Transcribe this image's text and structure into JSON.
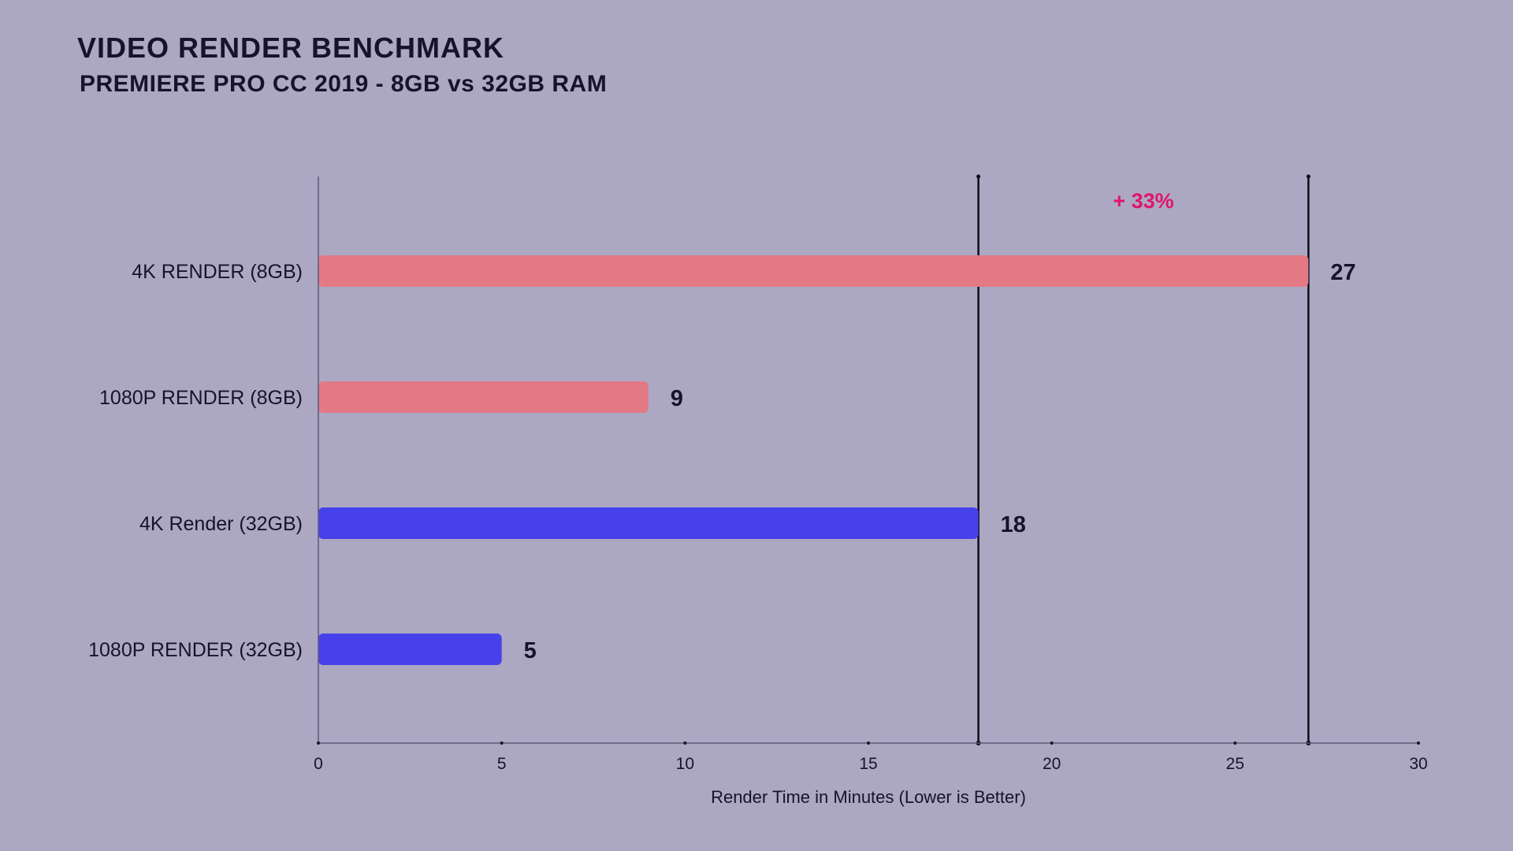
{
  "title": "VIDEO RENDER BENCHMARK",
  "subtitle": "PREMIERE PRO CC 2019 - 8GB vs 32GB RAM",
  "chart_data": {
    "type": "bar",
    "orientation": "horizontal",
    "categories": [
      "4K RENDER (8GB)",
      "1080P RENDER (8GB)",
      "4K Render (32GB)",
      "1080P RENDER (32GB)"
    ],
    "values": [
      27,
      9,
      18,
      5
    ],
    "bar_colors": [
      "#e27985",
      "#e27985",
      "#4641ea",
      "#4641ea"
    ],
    "xlabel": "Render Time in Minutes (Lower is Better)",
    "ylabel": "",
    "xlim": [
      0,
      30
    ],
    "xticks": [
      0,
      5,
      10,
      15,
      20,
      25,
      30
    ],
    "reference_lines": [
      18,
      27
    ],
    "annotation": {
      "text": "+ 33%",
      "color": "#e0156a"
    },
    "grid": false,
    "legend": "none"
  }
}
